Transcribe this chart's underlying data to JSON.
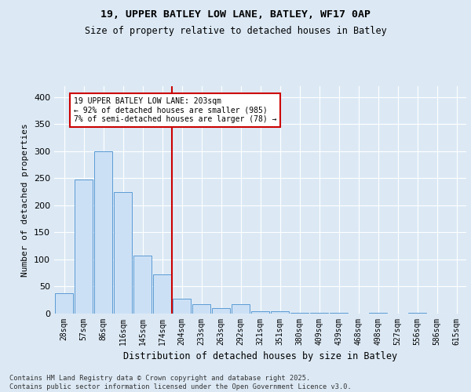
{
  "title1": "19, UPPER BATLEY LOW LANE, BATLEY, WF17 0AP",
  "title2": "Size of property relative to detached houses in Batley",
  "xlabel": "Distribution of detached houses by size in Batley",
  "ylabel": "Number of detached properties",
  "categories": [
    "28sqm",
    "57sqm",
    "86sqm",
    "116sqm",
    "145sqm",
    "174sqm",
    "204sqm",
    "233sqm",
    "263sqm",
    "292sqm",
    "321sqm",
    "351sqm",
    "380sqm",
    "409sqm",
    "439sqm",
    "468sqm",
    "498sqm",
    "527sqm",
    "556sqm",
    "586sqm",
    "615sqm"
  ],
  "values": [
    37,
    247,
    300,
    225,
    107,
    72,
    28,
    18,
    10,
    17,
    5,
    4,
    2,
    2,
    1,
    0,
    1,
    0,
    1,
    0,
    0
  ],
  "bar_color": "#cce0f5",
  "bar_edge_color": "#5b9bd5",
  "property_line_x": 5.5,
  "property_line_color": "#cc0000",
  "annotation_text": "19 UPPER BATLEY LOW LANE: 203sqm\n← 92% of detached houses are smaller (985)\n7% of semi-detached houses are larger (78) →",
  "annotation_box_facecolor": "#ffffff",
  "annotation_box_edgecolor": "#cc0000",
  "bg_color": "#dce9f5",
  "plot_bg_color": "#dce9f5",
  "footer_text": "Contains HM Land Registry data © Crown copyright and database right 2025.\nContains public sector information licensed under the Open Government Licence v3.0.",
  "ylim": [
    0,
    420
  ],
  "yticks": [
    0,
    50,
    100,
    150,
    200,
    250,
    300,
    350,
    400
  ]
}
